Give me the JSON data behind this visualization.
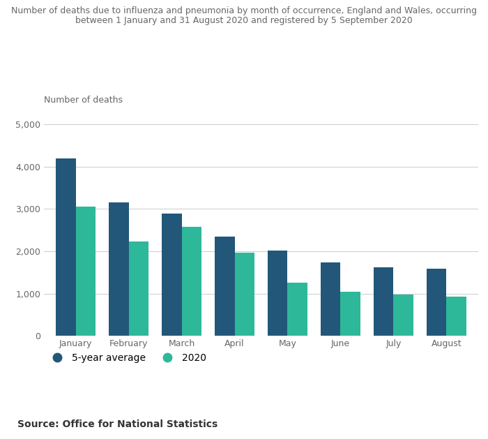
{
  "title_line1": "Number of deaths due to influenza and pneumonia by month of occurrence, England and Wales, occurring",
  "title_line2": "between 1 January and 31 August 2020 and registered by 5 September 2020",
  "ylabel": "Number of deaths",
  "months": [
    "January",
    "February",
    "March",
    "April",
    "May",
    "June",
    "July",
    "August"
  ],
  "five_year_avg": [
    4200,
    3150,
    2900,
    2350,
    2020,
    1730,
    1620,
    1580
  ],
  "values_2020": [
    3060,
    2240,
    2580,
    1960,
    1260,
    1040,
    970,
    930
  ],
  "color_avg": "#22577a",
  "color_2020": "#2eb89a",
  "ylim": [
    0,
    5400
  ],
  "yticks": [
    0,
    1000,
    2000,
    3000,
    4000,
    5000
  ],
  "ytick_labels": [
    "0",
    "1,000",
    "2,000",
    "3,000",
    "4,000",
    "5,000"
  ],
  "source": "Source: Office for National Statistics",
  "legend_avg": "5-year average",
  "legend_2020": "2020",
  "background_color": "#ffffff",
  "bar_width": 0.38,
  "title_fontsize": 9,
  "tick_fontsize": 9,
  "ylabel_fontsize": 9
}
